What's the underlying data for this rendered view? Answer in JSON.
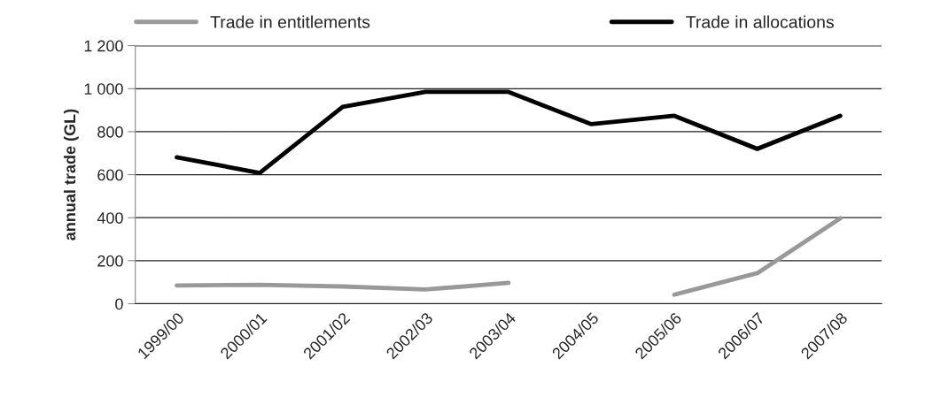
{
  "chart_data": {
    "type": "line",
    "ylabel": "annual trade (GL)",
    "categories": [
      "1999/00",
      "2000/01",
      "2001/02",
      "2002/03",
      "2003/04",
      "2004/05",
      "2005/06",
      "2006/07",
      "2007/08"
    ],
    "series": [
      {
        "name": "Trade in entitlements",
        "color": "#999999",
        "values": [
          85,
          88,
          80,
          66,
          97,
          null,
          42,
          142,
          397
        ]
      },
      {
        "name": "Trade in allocations",
        "color": "#000000",
        "values": [
          681,
          608,
          915,
          985,
          985,
          835,
          874,
          720,
          874
        ]
      }
    ],
    "ylim": [
      0,
      1200
    ],
    "yticks": [
      0,
      {
        "value": 200,
        "label": "200"
      },
      {
        "value": 400,
        "label": "400"
      },
      {
        "value": 600,
        "label": "600"
      },
      {
        "value": 800,
        "label": "800"
      },
      {
        "value": 1000,
        "label": "1 000"
      },
      {
        "value": 1200,
        "label": "1 200"
      }
    ],
    "grid": "y",
    "legend": "top",
    "marker": "none",
    "line_style": "solid"
  }
}
